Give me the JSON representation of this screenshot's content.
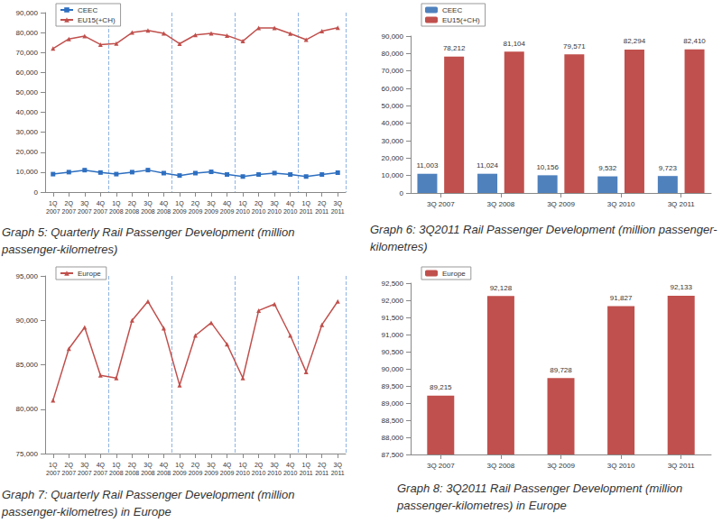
{
  "chart_data": [
    {
      "type": "line",
      "title": "Graph 5: Quarterly Rail Passenger Development (million passenger-kilometres)",
      "categories": [
        "1Q 2007",
        "2Q 2007",
        "3Q 2007",
        "4Q 2007",
        "1Q 2008",
        "2Q 2008",
        "3Q 2008",
        "4Q 2008",
        "1Q 2009",
        "2Q 2009",
        "3Q 2009",
        "4Q 2009",
        "1Q 2010",
        "2Q 2010",
        "3Q 2010",
        "4Q 2010",
        "1Q 2011",
        "2Q 2011",
        "3Q 2011"
      ],
      "series": [
        {
          "name": "CEEC",
          "color": "#2e6fc0",
          "marker": "square",
          "values": [
            9000,
            10000,
            11003,
            9800,
            9000,
            10000,
            11024,
            9500,
            8300,
            9500,
            10156,
            8800,
            7800,
            8800,
            9532,
            8800,
            7800,
            8800,
            9723
          ]
        },
        {
          "name": "EU15(+CH)",
          "color": "#c0504d",
          "marker": "triangle",
          "values": [
            72000,
            76800,
            78212,
            74000,
            74500,
            80000,
            81104,
            79600,
            74400,
            78800,
            79571,
            78500,
            75700,
            82300,
            82294,
            79500,
            76400,
            80700,
            82410
          ]
        }
      ],
      "ylim": [
        0,
        90000
      ],
      "yticks": [
        0,
        {
          "value": 10000,
          "label": "10,000"
        },
        {
          "value": 20000,
          "label": "20,000"
        },
        {
          "value": 30000,
          "label": "30,000"
        },
        {
          "value": 40000,
          "label": "40,000"
        },
        {
          "value": 50000,
          "label": "50,000"
        },
        {
          "value": 60000,
          "label": "60,000"
        },
        {
          "value": 70000,
          "label": "70,000"
        },
        {
          "value": 80000,
          "label": "80,000"
        },
        {
          "value": 90000,
          "label": "90,000"
        }
      ],
      "grid": false,
      "legend": "top-left"
    },
    {
      "type": "bar",
      "title": "Graph 6: 3Q2011 Rail Passenger Development (million passenger-kilometres)",
      "categories": [
        "3Q 2007",
        "3Q 2008",
        "3Q 2009",
        "3Q 2010",
        "3Q 2011"
      ],
      "series": [
        {
          "name": "CEEC",
          "color": "#4f81bd",
          "values": [
            11003,
            11024,
            10156,
            9532,
            9723
          ],
          "value_labels": [
            "11,003",
            "11,024",
            "10,156",
            "9,532",
            "9,723"
          ]
        },
        {
          "name": "EU15(+CH)",
          "color": "#c0504d",
          "values": [
            78212,
            81104,
            79571,
            82294,
            82410
          ],
          "value_labels": [
            "78,212",
            "81,104",
            "79,571",
            "82,294",
            "82,410"
          ]
        }
      ],
      "ylim": [
        0,
        90000
      ],
      "yticks": [
        0,
        {
          "value": 10000,
          "label": "10,000"
        },
        {
          "value": 20000,
          "label": "20,000"
        },
        {
          "value": 30000,
          "label": "30,000"
        },
        {
          "value": 40000,
          "label": "40,000"
        },
        {
          "value": 50000,
          "label": "50,000"
        },
        {
          "value": 60000,
          "label": "60,000"
        },
        {
          "value": 70000,
          "label": "70,000"
        },
        {
          "value": 80000,
          "label": "80,000"
        },
        {
          "value": 90000,
          "label": "90,000"
        }
      ],
      "grid": false,
      "legend": "top-left",
      "data_labels": true
    },
    {
      "type": "line",
      "title": "Graph 7: Quarterly Rail Passenger Development (million passenger-kilometres) in Europe",
      "categories": [
        "1Q 2007",
        "2Q 2007",
        "3Q 2007",
        "4Q 2007",
        "1Q 2008",
        "2Q 2008",
        "3Q 2008",
        "4Q 2008",
        "1Q 2009",
        "2Q 2009",
        "3Q 2009",
        "4Q 2009",
        "1Q 2010",
        "2Q 2010",
        "3Q 2010",
        "4Q 2010",
        "1Q 2011",
        "2Q 2011",
        "3Q 2011"
      ],
      "series": [
        {
          "name": "Europe",
          "color": "#c0504d",
          "marker": "triangle",
          "values": [
            81000,
            86800,
            89215,
            83800,
            83500,
            90000,
            92128,
            89100,
            82700,
            88300,
            89728,
            87300,
            83500,
            91100,
            91827,
            88300,
            84200,
            89500,
            92133
          ]
        }
      ],
      "ylim": [
        75000,
        95000
      ],
      "yticks": [
        {
          "value": 75000,
          "label": "75,000"
        },
        {
          "value": 80000,
          "label": "80,000"
        },
        {
          "value": 85000,
          "label": "85,000"
        },
        {
          "value": 90000,
          "label": "90,000"
        },
        {
          "value": 95000,
          "label": "95,000"
        }
      ],
      "grid": false,
      "legend": "top-left"
    },
    {
      "type": "bar",
      "title": "Graph 8: 3Q2011 Rail Passenger Development (million passenger-kilometres) in Europe",
      "categories": [
        "3Q 2007",
        "3Q 2008",
        "3Q 2009",
        "3Q 2010",
        "3Q 2011"
      ],
      "series": [
        {
          "name": "Europe",
          "color": "#c0504d",
          "values": [
            89215,
            92128,
            89728,
            91827,
            92133
          ],
          "value_labels": [
            "89,215",
            "92,128",
            "89,728",
            "91,827",
            "92,133"
          ]
        }
      ],
      "ylim": [
        87500,
        92500
      ],
      "yticks": [
        {
          "value": 87500,
          "label": "87,500"
        },
        {
          "value": 88000,
          "label": "88,000"
        },
        {
          "value": 88500,
          "label": "88,500"
        },
        {
          "value": 89000,
          "label": "89,000"
        },
        {
          "value": 89500,
          "label": "89,500"
        },
        {
          "value": 90000,
          "label": "90,000"
        },
        {
          "value": 90500,
          "label": "90,500"
        },
        {
          "value": 91000,
          "label": "91,000"
        },
        {
          "value": 91500,
          "label": "91,500"
        },
        {
          "value": 92000,
          "label": "92,000"
        },
        {
          "value": 92500,
          "label": "92,500"
        }
      ],
      "grid": false,
      "legend": "top-left",
      "data_labels": true
    }
  ]
}
